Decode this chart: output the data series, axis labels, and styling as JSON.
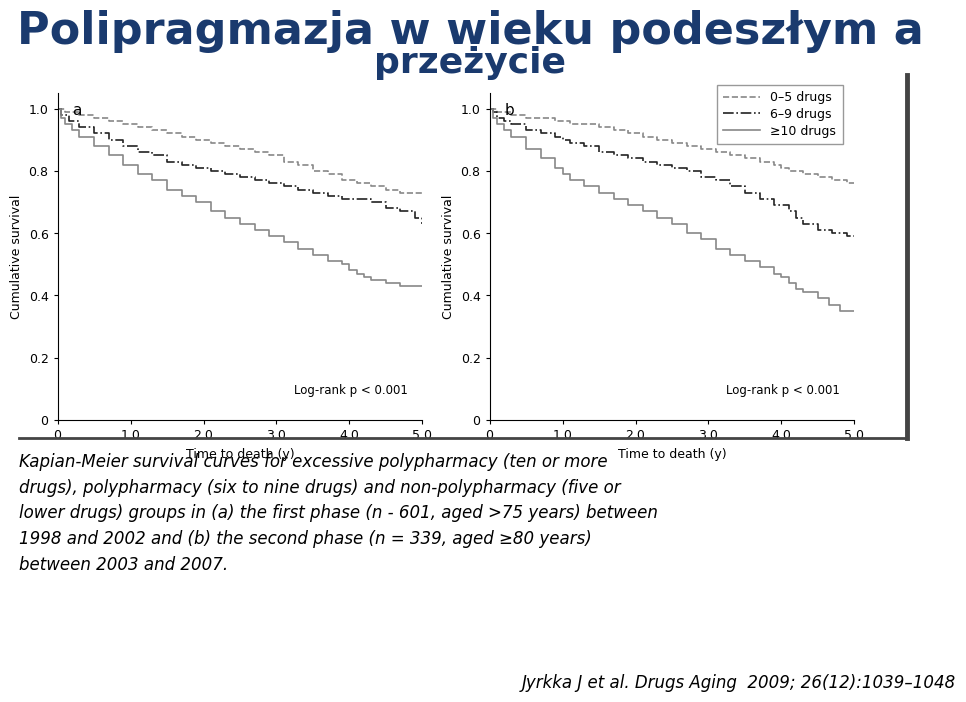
{
  "title_line1": "Polipragmazja w wieku podeszłym a",
  "title_line2": "przeżycie",
  "title_color": "#1a3a6e",
  "title_fontsize": 32,
  "subtitle_fontsize": 26,
  "panel_a_label": "a",
  "panel_b_label": "b",
  "xlabel": "Time to death (y)",
  "ylabel": "Cumulative survival",
  "xlim": [
    0,
    5.0
  ],
  "ylim": [
    0,
    1.05
  ],
  "xticks": [
    0,
    1.0,
    2.0,
    3.0,
    4.0,
    5.0
  ],
  "yticks": [
    0,
    0.2,
    0.4,
    0.6,
    0.8,
    1.0
  ],
  "logrank_text": "Log-rank p < 0.001",
  "legend_labels": [
    "0–5 drugs",
    "6–9 drugs",
    "≥10 drugs"
  ],
  "panel_a": {
    "curve_05": {
      "x": [
        0.0,
        0.1,
        0.3,
        0.5,
        0.7,
        0.9,
        1.1,
        1.3,
        1.5,
        1.7,
        1.9,
        2.1,
        2.3,
        2.5,
        2.7,
        2.9,
        3.1,
        3.3,
        3.5,
        3.7,
        3.9,
        4.1,
        4.3,
        4.5,
        4.7,
        4.9,
        5.0
      ],
      "y": [
        1.0,
        0.99,
        0.98,
        0.97,
        0.96,
        0.95,
        0.94,
        0.93,
        0.92,
        0.91,
        0.9,
        0.89,
        0.88,
        0.87,
        0.86,
        0.85,
        0.83,
        0.82,
        0.8,
        0.79,
        0.77,
        0.76,
        0.75,
        0.74,
        0.73,
        0.73,
        0.73
      ],
      "style": "--",
      "color": "#888888",
      "linewidth": 1.2
    },
    "curve_69": {
      "x": [
        0.0,
        0.05,
        0.15,
        0.3,
        0.5,
        0.7,
        0.9,
        1.1,
        1.3,
        1.5,
        1.7,
        1.9,
        2.1,
        2.3,
        2.5,
        2.7,
        2.9,
        3.1,
        3.3,
        3.5,
        3.7,
        3.9,
        4.1,
        4.2,
        4.3,
        4.5,
        4.7,
        4.9,
        5.0
      ],
      "y": [
        1.0,
        0.98,
        0.96,
        0.94,
        0.92,
        0.9,
        0.88,
        0.86,
        0.85,
        0.83,
        0.82,
        0.81,
        0.8,
        0.79,
        0.78,
        0.77,
        0.76,
        0.75,
        0.74,
        0.73,
        0.72,
        0.71,
        0.71,
        0.71,
        0.7,
        0.68,
        0.67,
        0.65,
        0.63
      ],
      "style": "-.",
      "color": "#222222",
      "linewidth": 1.2
    },
    "curve_10": {
      "x": [
        0.0,
        0.05,
        0.1,
        0.2,
        0.3,
        0.5,
        0.7,
        0.9,
        1.1,
        1.3,
        1.5,
        1.7,
        1.9,
        2.1,
        2.3,
        2.5,
        2.7,
        2.9,
        3.1,
        3.3,
        3.5,
        3.7,
        3.9,
        4.0,
        4.1,
        4.2,
        4.3,
        4.5,
        4.7,
        4.9,
        5.0
      ],
      "y": [
        1.0,
        0.97,
        0.95,
        0.93,
        0.91,
        0.88,
        0.85,
        0.82,
        0.79,
        0.77,
        0.74,
        0.72,
        0.7,
        0.67,
        0.65,
        0.63,
        0.61,
        0.59,
        0.57,
        0.55,
        0.53,
        0.51,
        0.5,
        0.48,
        0.47,
        0.46,
        0.45,
        0.44,
        0.43,
        0.43,
        0.43
      ],
      "style": "-",
      "color": "#888888",
      "linewidth": 1.2
    }
  },
  "panel_b": {
    "curve_05": {
      "x": [
        0.0,
        0.1,
        0.3,
        0.5,
        0.7,
        0.9,
        1.0,
        1.1,
        1.3,
        1.5,
        1.7,
        1.9,
        2.1,
        2.3,
        2.5,
        2.7,
        2.9,
        3.1,
        3.3,
        3.5,
        3.7,
        3.9,
        4.0,
        4.1,
        4.3,
        4.5,
        4.7,
        4.9,
        5.0
      ],
      "y": [
        1.0,
        0.99,
        0.98,
        0.97,
        0.97,
        0.96,
        0.96,
        0.95,
        0.95,
        0.94,
        0.93,
        0.92,
        0.91,
        0.9,
        0.89,
        0.88,
        0.87,
        0.86,
        0.85,
        0.84,
        0.83,
        0.82,
        0.81,
        0.8,
        0.79,
        0.78,
        0.77,
        0.76,
        0.76
      ],
      "style": "--",
      "color": "#888888",
      "linewidth": 1.2
    },
    "curve_69": {
      "x": [
        0.0,
        0.05,
        0.1,
        0.2,
        0.3,
        0.5,
        0.7,
        0.9,
        1.0,
        1.1,
        1.3,
        1.5,
        1.7,
        1.9,
        2.1,
        2.3,
        2.5,
        2.7,
        2.9,
        3.1,
        3.3,
        3.5,
        3.7,
        3.9,
        4.1,
        4.2,
        4.3,
        4.5,
        4.7,
        4.9,
        5.0
      ],
      "y": [
        1.0,
        0.99,
        0.97,
        0.96,
        0.95,
        0.93,
        0.92,
        0.91,
        0.9,
        0.89,
        0.88,
        0.86,
        0.85,
        0.84,
        0.83,
        0.82,
        0.81,
        0.8,
        0.78,
        0.77,
        0.75,
        0.73,
        0.71,
        0.69,
        0.67,
        0.65,
        0.63,
        0.61,
        0.6,
        0.59,
        0.59
      ],
      "style": "-.",
      "color": "#222222",
      "linewidth": 1.2
    },
    "curve_10": {
      "x": [
        0.0,
        0.05,
        0.1,
        0.2,
        0.3,
        0.5,
        0.7,
        0.9,
        1.0,
        1.1,
        1.3,
        1.5,
        1.7,
        1.9,
        2.1,
        2.3,
        2.5,
        2.7,
        2.9,
        3.1,
        3.3,
        3.5,
        3.7,
        3.9,
        4.0,
        4.1,
        4.2,
        4.3,
        4.5,
        4.65,
        4.8,
        5.0
      ],
      "y": [
        1.0,
        0.97,
        0.95,
        0.93,
        0.91,
        0.87,
        0.84,
        0.81,
        0.79,
        0.77,
        0.75,
        0.73,
        0.71,
        0.69,
        0.67,
        0.65,
        0.63,
        0.6,
        0.58,
        0.55,
        0.53,
        0.51,
        0.49,
        0.47,
        0.46,
        0.44,
        0.42,
        0.41,
        0.39,
        0.37,
        0.35,
        0.35
      ],
      "style": "-",
      "color": "#888888",
      "linewidth": 1.2
    }
  },
  "caption": "Kapian-Meier survival curves for excessive polypharmacy (ten or more\ndrugs), polypharmacy (six to nine drugs) and non-polypharmacy (five or\nlower drugs) groups in (a) the first phase (n - 601, aged >75 years) between\n1998 and 2002 and (b) the second phase (n = 339, aged ≥80 years)\nbetween 2003 and 2007.",
  "caption_fontsize": 12,
  "citation": "Jyrkka J et al. Drugs Aging  2009; 26(12):1039–1048",
  "citation_fontsize": 12,
  "bg_color": "#ffffff"
}
